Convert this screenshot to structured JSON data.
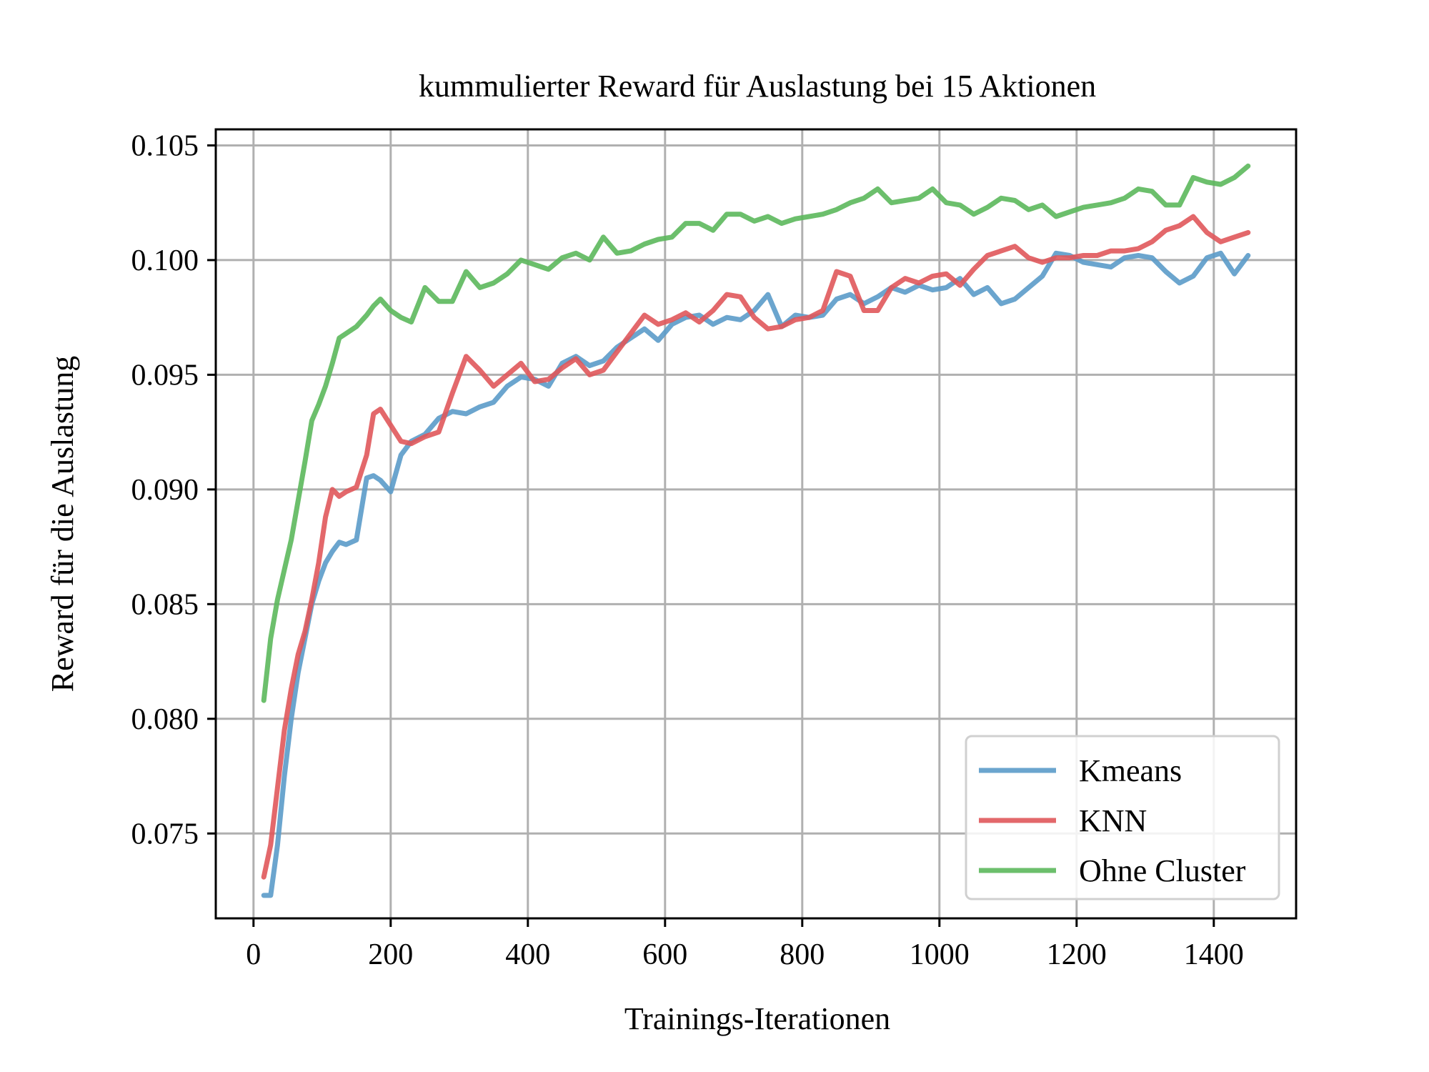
{
  "chart_data": {
    "type": "line",
    "title": "kummulierter Reward für Auslastung bei 15 Aktionen",
    "xlabel": "Trainings-Iterationen",
    "ylabel": "Reward für die Auslastung",
    "xlim": [
      -55,
      1520
    ],
    "ylim": [
      0.0713,
      0.1057
    ],
    "xticks": [
      0,
      200,
      400,
      600,
      800,
      1000,
      1200,
      1400
    ],
    "xtick_labels": [
      "0",
      "200",
      "400",
      "600",
      "800",
      "1000",
      "1200",
      "1400"
    ],
    "yticks": [
      0.075,
      0.08,
      0.085,
      0.09,
      0.095,
      0.1,
      0.105
    ],
    "ytick_labels": [
      "0.075",
      "0.080",
      "0.085",
      "0.090",
      "0.095",
      "0.100",
      "0.105"
    ],
    "grid": true,
    "legend_position": "lower right",
    "series": [
      {
        "name": "Kmeans",
        "color": "#5b9bc9",
        "x": [
          15,
          25,
          35,
          45,
          55,
          65,
          75,
          85,
          95,
          105,
          115,
          125,
          135,
          150,
          165,
          175,
          185,
          200,
          215,
          230,
          250,
          270,
          290,
          310,
          330,
          350,
          370,
          390,
          410,
          430,
          450,
          470,
          490,
          510,
          530,
          550,
          570,
          590,
          610,
          630,
          650,
          670,
          690,
          710,
          730,
          750,
          770,
          790,
          810,
          830,
          850,
          870,
          890,
          910,
          930,
          950,
          970,
          990,
          1010,
          1030,
          1050,
          1070,
          1090,
          1110,
          1130,
          1150,
          1170,
          1190,
          1210,
          1230,
          1250,
          1270,
          1290,
          1310,
          1330,
          1350,
          1370,
          1390,
          1410,
          1430,
          1450
        ],
        "values": [
          0.0723,
          0.0723,
          0.0745,
          0.0775,
          0.08,
          0.082,
          0.0835,
          0.085,
          0.086,
          0.0868,
          0.0873,
          0.0877,
          0.0876,
          0.0878,
          0.0905,
          0.0906,
          0.0904,
          0.0899,
          0.0915,
          0.0921,
          0.0924,
          0.0931,
          0.0934,
          0.0933,
          0.0936,
          0.0938,
          0.0945,
          0.0949,
          0.0948,
          0.0945,
          0.0955,
          0.0958,
          0.0954,
          0.0956,
          0.0962,
          0.0966,
          0.097,
          0.0965,
          0.0972,
          0.0975,
          0.0976,
          0.0972,
          0.0975,
          0.0974,
          0.0978,
          0.0985,
          0.0971,
          0.0976,
          0.0975,
          0.0976,
          0.0983,
          0.0985,
          0.0981,
          0.0984,
          0.0988,
          0.0986,
          0.0989,
          0.0987,
          0.0988,
          0.0992,
          0.0985,
          0.0988,
          0.0981,
          0.0983,
          0.0988,
          0.0993,
          0.1003,
          0.1002,
          0.0999,
          0.0998,
          0.0997,
          0.1001,
          0.1002,
          0.1001,
          0.0995,
          0.099,
          0.0993,
          0.1001,
          0.1003,
          0.0994,
          0.1002
        ]
      },
      {
        "name": "KNN",
        "color": "#e0585b",
        "x": [
          15,
          25,
          35,
          45,
          55,
          65,
          75,
          85,
          95,
          105,
          115,
          125,
          135,
          150,
          165,
          175,
          185,
          200,
          215,
          230,
          250,
          270,
          290,
          310,
          330,
          350,
          370,
          390,
          410,
          430,
          450,
          470,
          490,
          510,
          530,
          550,
          570,
          590,
          610,
          630,
          650,
          670,
          690,
          710,
          730,
          750,
          770,
          790,
          810,
          830,
          850,
          870,
          890,
          910,
          930,
          950,
          970,
          990,
          1010,
          1030,
          1050,
          1070,
          1090,
          1110,
          1130,
          1150,
          1170,
          1190,
          1210,
          1230,
          1250,
          1270,
          1290,
          1310,
          1330,
          1350,
          1370,
          1390,
          1410,
          1430,
          1450
        ],
        "values": [
          0.0731,
          0.0745,
          0.077,
          0.0795,
          0.0813,
          0.0828,
          0.0838,
          0.0852,
          0.0868,
          0.0888,
          0.09,
          0.0897,
          0.0899,
          0.0901,
          0.0915,
          0.0933,
          0.0935,
          0.0928,
          0.0921,
          0.092,
          0.0923,
          0.0925,
          0.0942,
          0.0958,
          0.0952,
          0.0945,
          0.095,
          0.0955,
          0.0947,
          0.0948,
          0.0953,
          0.0957,
          0.095,
          0.0952,
          0.096,
          0.0968,
          0.0976,
          0.0972,
          0.0974,
          0.0977,
          0.0973,
          0.0978,
          0.0985,
          0.0984,
          0.0975,
          0.097,
          0.0971,
          0.0974,
          0.0975,
          0.0978,
          0.0995,
          0.0993,
          0.0978,
          0.0978,
          0.0988,
          0.0992,
          0.099,
          0.0993,
          0.0994,
          0.0989,
          0.0996,
          0.1002,
          0.1004,
          0.1006,
          0.1001,
          0.0999,
          0.1001,
          0.1001,
          0.1002,
          0.1002,
          0.1004,
          0.1004,
          0.1005,
          0.1008,
          0.1013,
          0.1015,
          0.1019,
          0.1012,
          0.1008,
          0.101,
          0.1012
        ]
      },
      {
        "name": "Ohne Cluster",
        "color": "#5cb85c",
        "x": [
          15,
          25,
          35,
          45,
          55,
          65,
          75,
          85,
          95,
          105,
          115,
          125,
          135,
          150,
          165,
          175,
          185,
          200,
          215,
          230,
          250,
          270,
          290,
          310,
          330,
          350,
          370,
          390,
          410,
          430,
          450,
          470,
          490,
          510,
          530,
          550,
          570,
          590,
          610,
          630,
          650,
          670,
          690,
          710,
          730,
          750,
          770,
          790,
          810,
          830,
          850,
          870,
          890,
          910,
          930,
          950,
          970,
          990,
          1010,
          1030,
          1050,
          1070,
          1090,
          1110,
          1130,
          1150,
          1170,
          1190,
          1210,
          1230,
          1250,
          1270,
          1290,
          1310,
          1330,
          1350,
          1370,
          1390,
          1410,
          1430,
          1450
        ],
        "values": [
          0.0808,
          0.0835,
          0.0852,
          0.0865,
          0.0878,
          0.0895,
          0.0912,
          0.093,
          0.0937,
          0.0945,
          0.0955,
          0.0966,
          0.0968,
          0.0971,
          0.0976,
          0.098,
          0.0983,
          0.0978,
          0.0975,
          0.0973,
          0.0988,
          0.0982,
          0.0982,
          0.0995,
          0.0988,
          0.099,
          0.0994,
          0.1,
          0.0998,
          0.0996,
          0.1001,
          0.1003,
          0.1,
          0.101,
          0.1003,
          0.1004,
          0.1007,
          0.1009,
          0.101,
          0.1016,
          0.1016,
          0.1013,
          0.102,
          0.102,
          0.1017,
          0.1019,
          0.1016,
          0.1018,
          0.1019,
          0.102,
          0.1022,
          0.1025,
          0.1027,
          0.1031,
          0.1025,
          0.1026,
          0.1027,
          0.1031,
          0.1025,
          0.1024,
          0.102,
          0.1023,
          0.1027,
          0.1026,
          0.1022,
          0.1024,
          0.1019,
          0.1021,
          0.1023,
          0.1024,
          0.1025,
          0.1027,
          0.1031,
          0.103,
          0.1024,
          0.1024,
          0.1036,
          0.1034,
          0.1033,
          0.1036,
          0.1041
        ]
      }
    ]
  }
}
